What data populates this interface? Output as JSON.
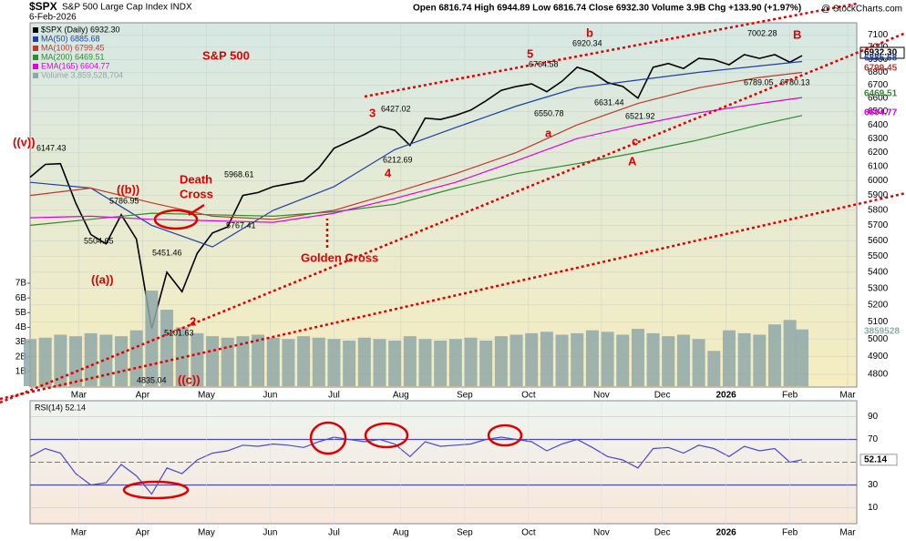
{
  "chart_data": [
    {
      "type": "price",
      "title": "$SPX",
      "subtitle": "S&P 500 Large Cap Index INDX",
      "date": "6-Feb-2026",
      "quote": "Open 6816.74  High 6944.89  Low 6816.74  Close 6932.30  Volume 3.9B  Chg +133.90 (+1.97%)",
      "source": "@ StockCharts.com",
      "log_scale": true,
      "xlim": [
        0,
        272
      ],
      "xticks": [
        {
          "value": 16,
          "label": "Mar"
        },
        {
          "value": 37,
          "label": "Apr"
        },
        {
          "value": 58,
          "label": "May"
        },
        {
          "value": 79,
          "label": "Jun"
        },
        {
          "value": 100,
          "label": "Jul"
        },
        {
          "value": 122,
          "label": "Aug"
        },
        {
          "value": 143,
          "label": "Sep"
        },
        {
          "value": 164,
          "label": "Oct"
        },
        {
          "value": 188,
          "label": "Nov"
        },
        {
          "value": 208,
          "label": "Dec"
        },
        {
          "value": 229,
          "label": "2026"
        },
        {
          "value": 250,
          "label": "Feb"
        },
        {
          "value": 269,
          "label": "Mar"
        }
      ],
      "ylim": [
        4730,
        7200
      ],
      "yticks": [
        4800,
        4900,
        5000,
        5100,
        5200,
        5300,
        5400,
        5500,
        5600,
        5700,
        5800,
        5900,
        6000,
        6100,
        6200,
        6300,
        6400,
        6500,
        6600,
        6700,
        6800,
        6900,
        7000,
        7100
      ],
      "y2lim": [
        0,
        7
      ],
      "y2ticks": [
        {
          "value": 1,
          "label": "1B"
        },
        {
          "value": 2,
          "label": "2B"
        },
        {
          "value": 3,
          "label": "3B"
        },
        {
          "value": 4,
          "label": "4B"
        },
        {
          "value": 5,
          "label": "5B"
        },
        {
          "value": 6,
          "label": "6B"
        },
        {
          "value": 7,
          "label": "7B"
        }
      ],
      "series": [
        {
          "name": "$SPX (Daily) 6932.30",
          "color": "#000000",
          "last_label": "6932.30",
          "x": [
            0,
            5,
            10,
            15,
            20,
            25,
            30,
            35,
            40,
            45,
            50,
            55,
            60,
            65,
            70,
            75,
            80,
            85,
            90,
            95,
            100,
            105,
            110,
            115,
            120,
            125,
            130,
            135,
            140,
            145,
            150,
            155,
            160,
            165,
            170,
            175,
            180,
            185,
            190,
            195,
            200,
            205,
            210,
            215,
            220,
            225,
            230,
            235,
            240,
            245,
            250,
            254
          ],
          "values": [
            6025,
            6115,
            6120,
            5850,
            5640,
            5580,
            5770,
            5610,
            5060,
            5400,
            5280,
            5520,
            5650,
            5690,
            5900,
            5920,
            5960,
            5980,
            6000,
            6090,
            6230,
            6280,
            6330,
            6390,
            6360,
            6250,
            6450,
            6440,
            6470,
            6510,
            6580,
            6660,
            6690,
            6710,
            6650,
            6730,
            6840,
            6800,
            6720,
            6690,
            6600,
            6840,
            6870,
            6830,
            6910,
            6900,
            6860,
            6940,
            6910,
            6940,
            6880,
            6932.3
          ]
        },
        {
          "name": "MA(50) 6885.68",
          "color": "#1f3fa8",
          "last_label": "6885.68",
          "x": [
            0,
            20,
            40,
            60,
            80,
            100,
            120,
            140,
            160,
            180,
            200,
            220,
            240,
            254
          ],
          "values": [
            5990,
            5950,
            5700,
            5560,
            5800,
            5960,
            6220,
            6380,
            6540,
            6680,
            6740,
            6800,
            6850,
            6885.68
          ]
        },
        {
          "name": "MA(100) 6799.45",
          "color": "#c0392b",
          "last_label": "6799.45",
          "x": [
            0,
            20,
            40,
            60,
            80,
            100,
            120,
            140,
            160,
            180,
            200,
            220,
            240,
            254
          ],
          "values": [
            5900,
            5950,
            5850,
            5760,
            5740,
            5800,
            5920,
            6050,
            6200,
            6400,
            6560,
            6680,
            6760,
            6799.45
          ]
        },
        {
          "name": "MA(200) 6469.51",
          "color": "#2e8b2e",
          "last_label": "6469.51",
          "x": [
            0,
            20,
            40,
            60,
            80,
            100,
            120,
            140,
            160,
            180,
            200,
            220,
            240,
            254
          ],
          "values": [
            5700,
            5740,
            5780,
            5770,
            5760,
            5790,
            5840,
            5950,
            6050,
            6120,
            6200,
            6290,
            6400,
            6469.51
          ]
        },
        {
          "name": "EMA(165) 6604.77",
          "color": "#e000e0",
          "last_label": "6604.77",
          "x": [
            0,
            20,
            40,
            60,
            80,
            100,
            120,
            140,
            160,
            180,
            200,
            220,
            240,
            254
          ],
          "values": [
            5750,
            5760,
            5740,
            5730,
            5720,
            5780,
            5880,
            5990,
            6140,
            6300,
            6400,
            6490,
            6560,
            6604.77
          ]
        },
        {
          "name": "Volume 3,859,528,704",
          "color": "#8fa8a8",
          "axis": "y2",
          "last_label": "3859528",
          "x": [
            0,
            5,
            10,
            15,
            20,
            25,
            30,
            35,
            40,
            45,
            50,
            55,
            60,
            65,
            70,
            75,
            80,
            85,
            90,
            95,
            100,
            105,
            110,
            115,
            120,
            125,
            130,
            135,
            140,
            145,
            150,
            155,
            160,
            165,
            170,
            175,
            180,
            185,
            190,
            195,
            200,
            205,
            210,
            215,
            220,
            225,
            230,
            235,
            240,
            245,
            250,
            254
          ],
          "values": [
            3.2,
            3.3,
            3.5,
            3.4,
            3.6,
            3.5,
            3.4,
            3.8,
            6.5,
            5.2,
            4.0,
            3.6,
            3.4,
            3.3,
            3.4,
            3.5,
            3.3,
            3.2,
            3.4,
            3.3,
            3.2,
            3.1,
            3.3,
            3.2,
            3.1,
            3.4,
            3.2,
            3.1,
            3.2,
            3.3,
            3.1,
            3.4,
            3.5,
            3.6,
            3.7,
            3.5,
            3.6,
            3.8,
            3.7,
            3.5,
            3.9,
            3.6,
            3.4,
            3.5,
            3.2,
            2.4,
            3.8,
            3.6,
            3.5,
            4.2,
            4.5,
            3.86
          ]
        }
      ],
      "annotations": [
        "S&P 500",
        "((v))",
        "6147.43",
        "((b))",
        "5786.95",
        "5504.65",
        "((a))",
        "5451.46",
        "2",
        "5101.63",
        "4835.04",
        "((c))",
        "Death",
        "Cross",
        "5968.61",
        "5767.41",
        "Golden Cross",
        "3",
        "6427.02",
        "6212.69",
        "4",
        "5",
        "6764.58",
        "6550.78",
        "b",
        "6920.34",
        "6631.44",
        "a",
        "6521.92",
        "c",
        "A",
        "7002.28",
        "B",
        "6789.05",
        "6780.13"
      ]
    },
    {
      "type": "rsi",
      "xlim": [
        0,
        272
      ],
      "ylim": [
        0,
        100
      ],
      "yticks": [
        10,
        30,
        50,
        70,
        90
      ],
      "series": [
        {
          "name": "RSI(14) 52.14",
          "color": "#4a4ad0",
          "last_label": "52.14",
          "x": [
            0,
            5,
            10,
            15,
            20,
            25,
            30,
            35,
            40,
            45,
            50,
            55,
            60,
            65,
            70,
            75,
            80,
            85,
            90,
            95,
            100,
            105,
            110,
            115,
            120,
            125,
            130,
            135,
            140,
            145,
            150,
            155,
            160,
            165,
            170,
            175,
            180,
            185,
            190,
            195,
            200,
            205,
            210,
            215,
            220,
            225,
            230,
            235,
            240,
            245,
            250,
            254
          ],
          "values": [
            55,
            62,
            58,
            40,
            30,
            32,
            48,
            38,
            22,
            45,
            40,
            52,
            58,
            60,
            65,
            64,
            66,
            65,
            63,
            68,
            72,
            70,
            68,
            70,
            66,
            55,
            68,
            64,
            65,
            66,
            70,
            72,
            70,
            68,
            60,
            66,
            70,
            63,
            55,
            52,
            45,
            62,
            63,
            58,
            65,
            62,
            55,
            64,
            60,
            62,
            50,
            52.14
          ]
        }
      ]
    }
  ]
}
